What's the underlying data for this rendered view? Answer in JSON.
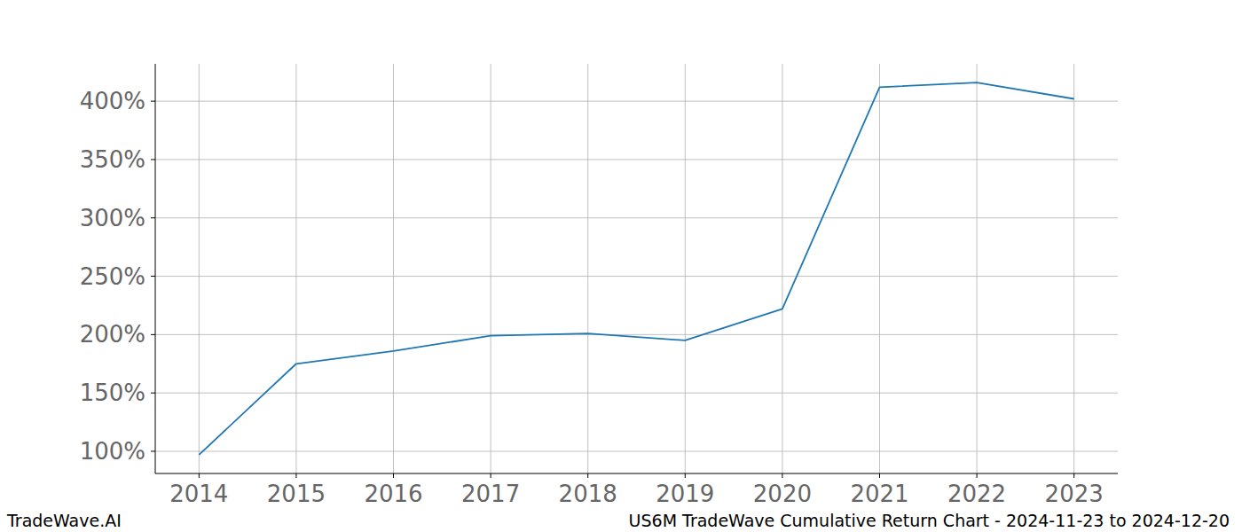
{
  "chart_data": {
    "type": "line",
    "title": "US6M TradeWave Cumulative Return Chart - 2024-11-23 to 2024-12-20",
    "source": "TradeWave.AI",
    "x": [
      2014,
      2015,
      2016,
      2017,
      2018,
      2019,
      2020,
      2021,
      2022,
      2023
    ],
    "series": [
      {
        "name": "US6M",
        "color": "#1f77b4",
        "values": [
          97,
          175,
          186,
          199,
          201,
          195,
          222,
          412,
          416,
          402
        ]
      }
    ],
    "xlim": [
      2013.55,
      2023.45
    ],
    "xticks": [
      2014,
      2015,
      2016,
      2017,
      2018,
      2019,
      2020,
      2021,
      2022,
      2023
    ],
    "ylim": [
      81,
      432
    ],
    "yticks": [
      {
        "value": 100,
        "label": "100%"
      },
      {
        "value": 150,
        "label": "150%"
      },
      {
        "value": 200,
        "label": "200%"
      },
      {
        "value": 250,
        "label": "250%"
      },
      {
        "value": 300,
        "label": "300%"
      },
      {
        "value": 350,
        "label": "350%"
      },
      {
        "value": 400,
        "label": "400%"
      }
    ],
    "grid": true
  }
}
